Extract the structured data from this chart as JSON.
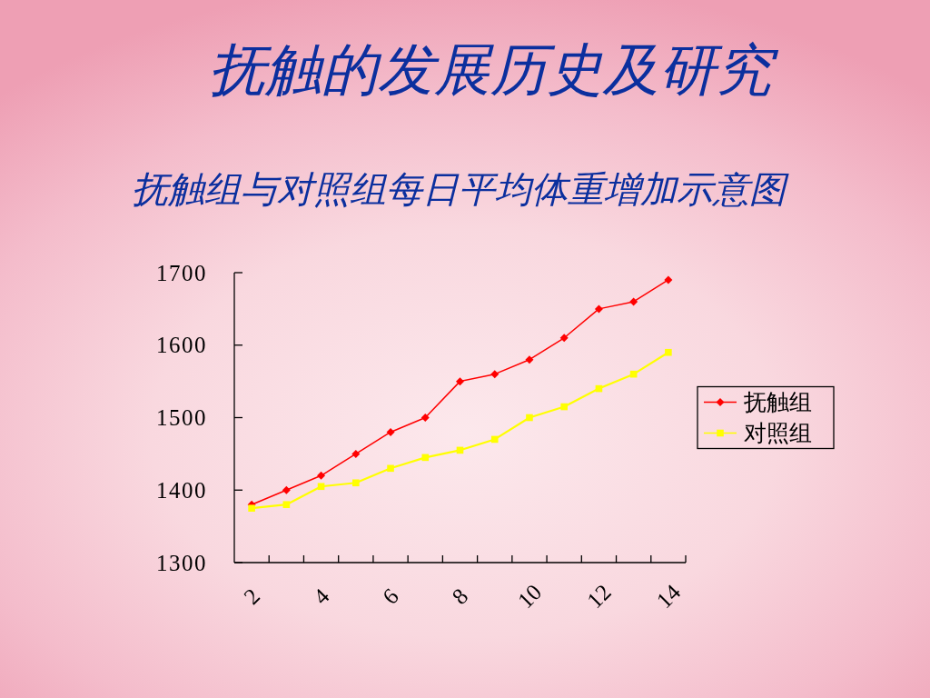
{
  "chart_data": {
    "type": "line",
    "title": "抚触的发展历史及研究",
    "subtitle": "抚触组与对照组每日平均体重增加示意图",
    "categories": [
      "2",
      null,
      "4",
      null,
      "6",
      null,
      "8",
      null,
      "10",
      null,
      "12",
      null,
      "14"
    ],
    "series": [
      {
        "name": "抚触组",
        "color": "#ff0000",
        "marker": "diamond",
        "values": [
          1380,
          1400,
          1420,
          1450,
          1480,
          1500,
          1550,
          1560,
          1580,
          1610,
          1650,
          1660,
          1690
        ]
      },
      {
        "name": "对照组",
        "color": "#ffff00",
        "marker": "square",
        "values": [
          1375,
          1380,
          1405,
          1410,
          1430,
          1445,
          1455,
          1470,
          1500,
          1515,
          1540,
          1560,
          1590
        ]
      }
    ],
    "ylim": [
      1300,
      1700
    ],
    "yticks": [
      1300,
      1400,
      1500,
      1600,
      1700
    ],
    "legend": "right"
  }
}
